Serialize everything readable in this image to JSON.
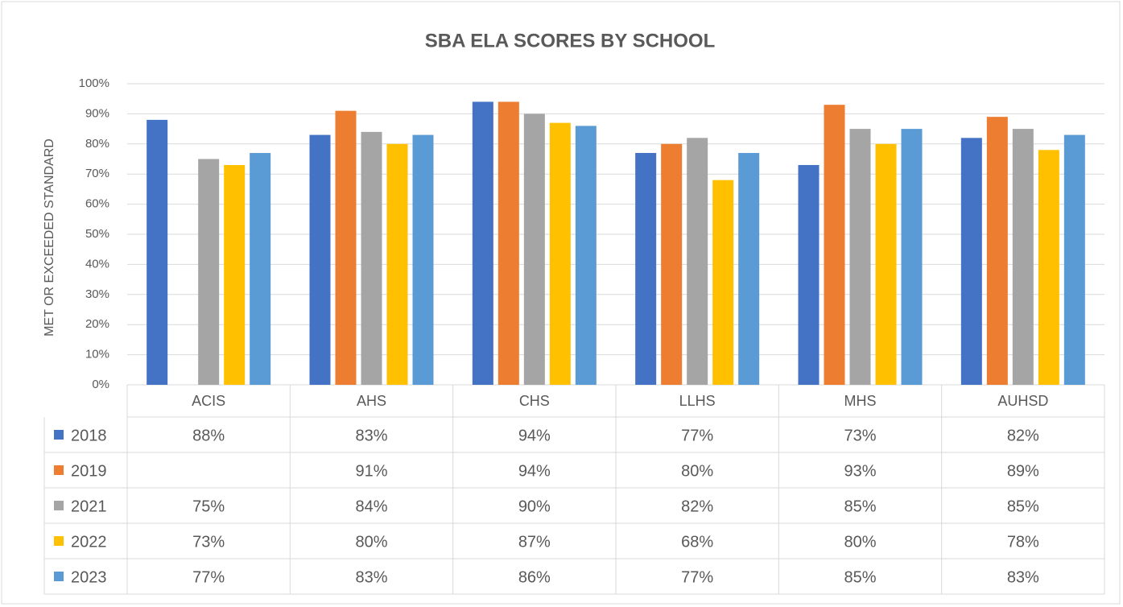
{
  "chart_data": {
    "type": "bar",
    "title": "SBA ELA SCORES BY SCHOOL",
    "y_label": "MET OR EXCEEDED STANDARD",
    "categories": [
      "ACIS",
      "AHS",
      "CHS",
      "LLHS",
      "MHS",
      "AUHSD"
    ],
    "series": [
      {
        "name": "2018",
        "color": "#4472c4",
        "values": [
          88,
          83,
          94,
          77,
          73,
          82
        ],
        "value_labels": [
          "88%",
          "83%",
          "94%",
          "77%",
          "73%",
          "82%"
        ]
      },
      {
        "name": "2019",
        "color": "#ed7d31",
        "values": [
          null,
          91,
          94,
          80,
          93,
          89
        ],
        "value_labels": [
          null,
          "91%",
          "94%",
          "80%",
          "93%",
          "89%"
        ]
      },
      {
        "name": "2021",
        "color": "#a5a5a5",
        "values": [
          75,
          84,
          90,
          82,
          85,
          85
        ],
        "value_labels": [
          "75%",
          "84%",
          "90%",
          "82%",
          "85%",
          "85%"
        ]
      },
      {
        "name": "2022",
        "color": "#ffc000",
        "values": [
          73,
          80,
          87,
          68,
          80,
          78
        ],
        "value_labels": [
          "73%",
          "80%",
          "87%",
          "68%",
          "80%",
          "78%"
        ]
      },
      {
        "name": "2023",
        "color": "#5b9bd5",
        "values": [
          77,
          83,
          86,
          77,
          85,
          83
        ],
        "value_labels": [
          "77%",
          "83%",
          "86%",
          "77%",
          "85%",
          "83%"
        ]
      }
    ],
    "ylim": [
      0,
      100
    ],
    "yticks": [
      {
        "value": 0,
        "label": "0%"
      },
      {
        "value": 10,
        "label": "10%"
      },
      {
        "value": 20,
        "label": "20%"
      },
      {
        "value": 30,
        "label": "30%"
      },
      {
        "value": 40,
        "label": "40%"
      },
      {
        "value": 50,
        "label": "50%"
      },
      {
        "value": 60,
        "label": "60%"
      },
      {
        "value": 70,
        "label": "70%"
      },
      {
        "value": 80,
        "label": "80%"
      },
      {
        "value": 90,
        "label": "90%"
      },
      {
        "value": 100,
        "label": "100%"
      }
    ],
    "grid": true
  }
}
